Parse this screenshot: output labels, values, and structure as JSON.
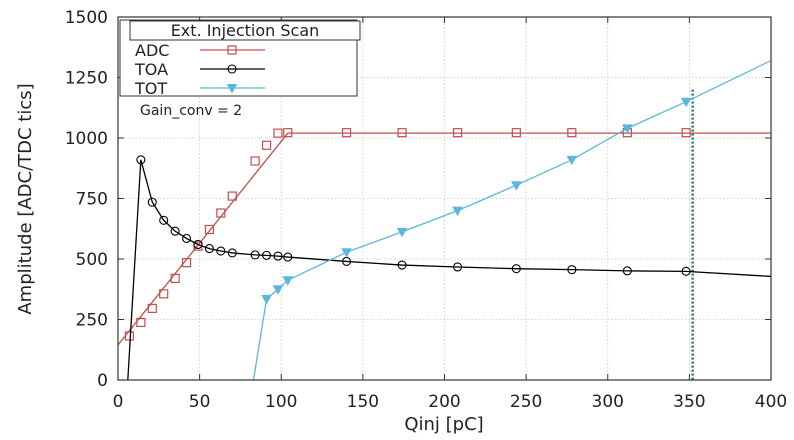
{
  "chart_data": {
    "type": "line",
    "title": "",
    "xlabel": "Qinj [pC]",
    "ylabel": "Amplitude [ADC/TDC tics]",
    "xlim": [
      0,
      400
    ],
    "ylim": [
      0,
      1500
    ],
    "xticks": [
      0,
      50,
      100,
      150,
      200,
      250,
      300,
      350,
      400
    ],
    "yticks": [
      0,
      250,
      500,
      750,
      1000,
      1250,
      1500
    ],
    "grid": true,
    "legend": {
      "title": "Ext. Injection Scan",
      "position": "top-left"
    },
    "annotation": "Gain_conv = 2",
    "vline": {
      "x": 352,
      "color": "#1a7a6e"
    },
    "series": [
      {
        "name": "ADC",
        "color": "#c0504d",
        "marker": "square",
        "line": [
          [
            0,
            145
          ],
          [
            104,
            1020
          ],
          [
            400,
            1020
          ]
        ],
        "points": [
          [
            7,
            182
          ],
          [
            14,
            238
          ],
          [
            21,
            296
          ],
          [
            28,
            356
          ],
          [
            35,
            420
          ],
          [
            42,
            485
          ],
          [
            49,
            553
          ],
          [
            56,
            622
          ],
          [
            63,
            690
          ],
          [
            70,
            760
          ],
          [
            84,
            905
          ],
          [
            91,
            970
          ],
          [
            98,
            1020
          ],
          [
            104,
            1022
          ],
          [
            140,
            1022
          ],
          [
            174,
            1022
          ],
          [
            208,
            1022
          ],
          [
            244,
            1022
          ],
          [
            278,
            1022
          ],
          [
            312,
            1022
          ],
          [
            348,
            1022
          ]
        ]
      },
      {
        "name": "TOA",
        "color": "#000000",
        "marker": "circle",
        "line": [
          [
            6,
            0
          ],
          [
            14,
            910
          ],
          [
            21,
            735
          ],
          [
            28,
            660
          ],
          [
            35,
            615
          ],
          [
            42,
            585
          ],
          [
            49,
            560
          ],
          [
            56,
            543
          ],
          [
            63,
            533
          ],
          [
            70,
            525
          ],
          [
            84,
            517
          ],
          [
            91,
            515
          ],
          [
            98,
            512
          ],
          [
            104,
            508
          ],
          [
            140,
            490
          ],
          [
            174,
            475
          ],
          [
            208,
            467
          ],
          [
            244,
            460
          ],
          [
            278,
            456
          ],
          [
            312,
            451
          ],
          [
            348,
            449
          ],
          [
            400,
            428
          ]
        ],
        "points": [
          [
            14,
            910
          ],
          [
            21,
            735
          ],
          [
            28,
            660
          ],
          [
            35,
            615
          ],
          [
            42,
            585
          ],
          [
            49,
            560
          ],
          [
            56,
            543
          ],
          [
            63,
            533
          ],
          [
            70,
            525
          ],
          [
            84,
            517
          ],
          [
            91,
            515
          ],
          [
            98,
            512
          ],
          [
            104,
            508
          ],
          [
            140,
            490
          ],
          [
            174,
            475
          ],
          [
            208,
            467
          ],
          [
            244,
            460
          ],
          [
            278,
            456
          ],
          [
            312,
            451
          ],
          [
            348,
            449
          ]
        ]
      },
      {
        "name": "TOT",
        "color": "#5bb8dc",
        "marker": "triangle-down",
        "line": [
          [
            83,
            0
          ],
          [
            91,
            335
          ],
          [
            98,
            375
          ],
          [
            104,
            412
          ],
          [
            140,
            528
          ],
          [
            174,
            612
          ],
          [
            208,
            700
          ],
          [
            244,
            805
          ],
          [
            278,
            910
          ],
          [
            312,
            1040
          ],
          [
            348,
            1150
          ],
          [
            400,
            1320
          ]
        ],
        "points": [
          [
            91,
            335
          ],
          [
            98,
            375
          ],
          [
            104,
            412
          ],
          [
            140,
            528
          ],
          [
            174,
            612
          ],
          [
            208,
            700
          ],
          [
            244,
            805
          ],
          [
            278,
            910
          ],
          [
            312,
            1040
          ],
          [
            348,
            1150
          ]
        ]
      }
    ]
  }
}
